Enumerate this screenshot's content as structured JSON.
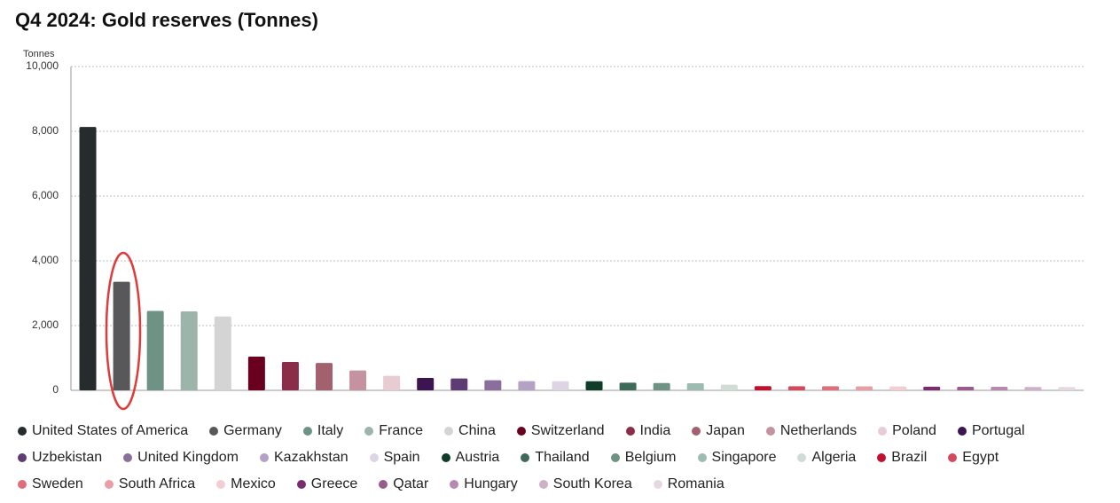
{
  "chart_data": {
    "type": "bar",
    "title": "Q4 2024: Gold reserves (Tonnes)",
    "y_label": "Tonnes",
    "categories": [
      "United States of America",
      "Germany",
      "Italy",
      "France",
      "China",
      "Switzerland",
      "India",
      "Japan",
      "Netherlands",
      "Poland",
      "Portugal",
      "Uzbekistan",
      "United Kingdom",
      "Kazakhstan",
      "Spain",
      "Austria",
      "Thailand",
      "Belgium",
      "Singapore",
      "Algeria",
      "Brazil",
      "Egypt",
      "Sweden",
      "South Africa",
      "Mexico",
      "Greece",
      "Qatar",
      "Hungary",
      "South Korea",
      "Romania"
    ],
    "values": [
      8133,
      3352,
      2452,
      2437,
      2280,
      1040,
      876,
      846,
      612,
      448,
      383,
      365,
      310,
      284,
      282,
      280,
      235,
      227,
      220,
      174,
      130,
      127,
      126,
      125,
      120,
      114,
      110,
      110,
      104,
      104
    ],
    "colors": [
      "#262b2e",
      "#58585a",
      "#6e9283",
      "#9db4ab",
      "#d4d4d4",
      "#6a0020",
      "#8b2c48",
      "#a3616f",
      "#c4939f",
      "#e8ccd4",
      "#3b1450",
      "#5e3b72",
      "#8a6f9c",
      "#b3a2c3",
      "#ddd5e3",
      "#0f3d2a",
      "#3d6b58",
      "#6f9383",
      "#9dbbae",
      "#d0dcd6",
      "#c0102c",
      "#d24a5c",
      "#dd6f7c",
      "#e89ea6",
      "#f2cdd2",
      "#7a2d6e",
      "#9a5a8e",
      "#b788b0",
      "#cfb0c8",
      "#e6d8e3"
    ],
    "ylim": [
      0,
      10000
    ],
    "yticks": [
      0,
      {
        "value": 2000,
        "label": "2,000"
      },
      {
        "value": 4000,
        "label": "4,000"
      },
      {
        "value": 6000,
        "label": "6,000"
      },
      {
        "value": 8000,
        "label": "8,000"
      },
      {
        "value": 10000,
        "label": "10,000"
      }
    ],
    "grid": true,
    "legend": "bottom"
  }
}
